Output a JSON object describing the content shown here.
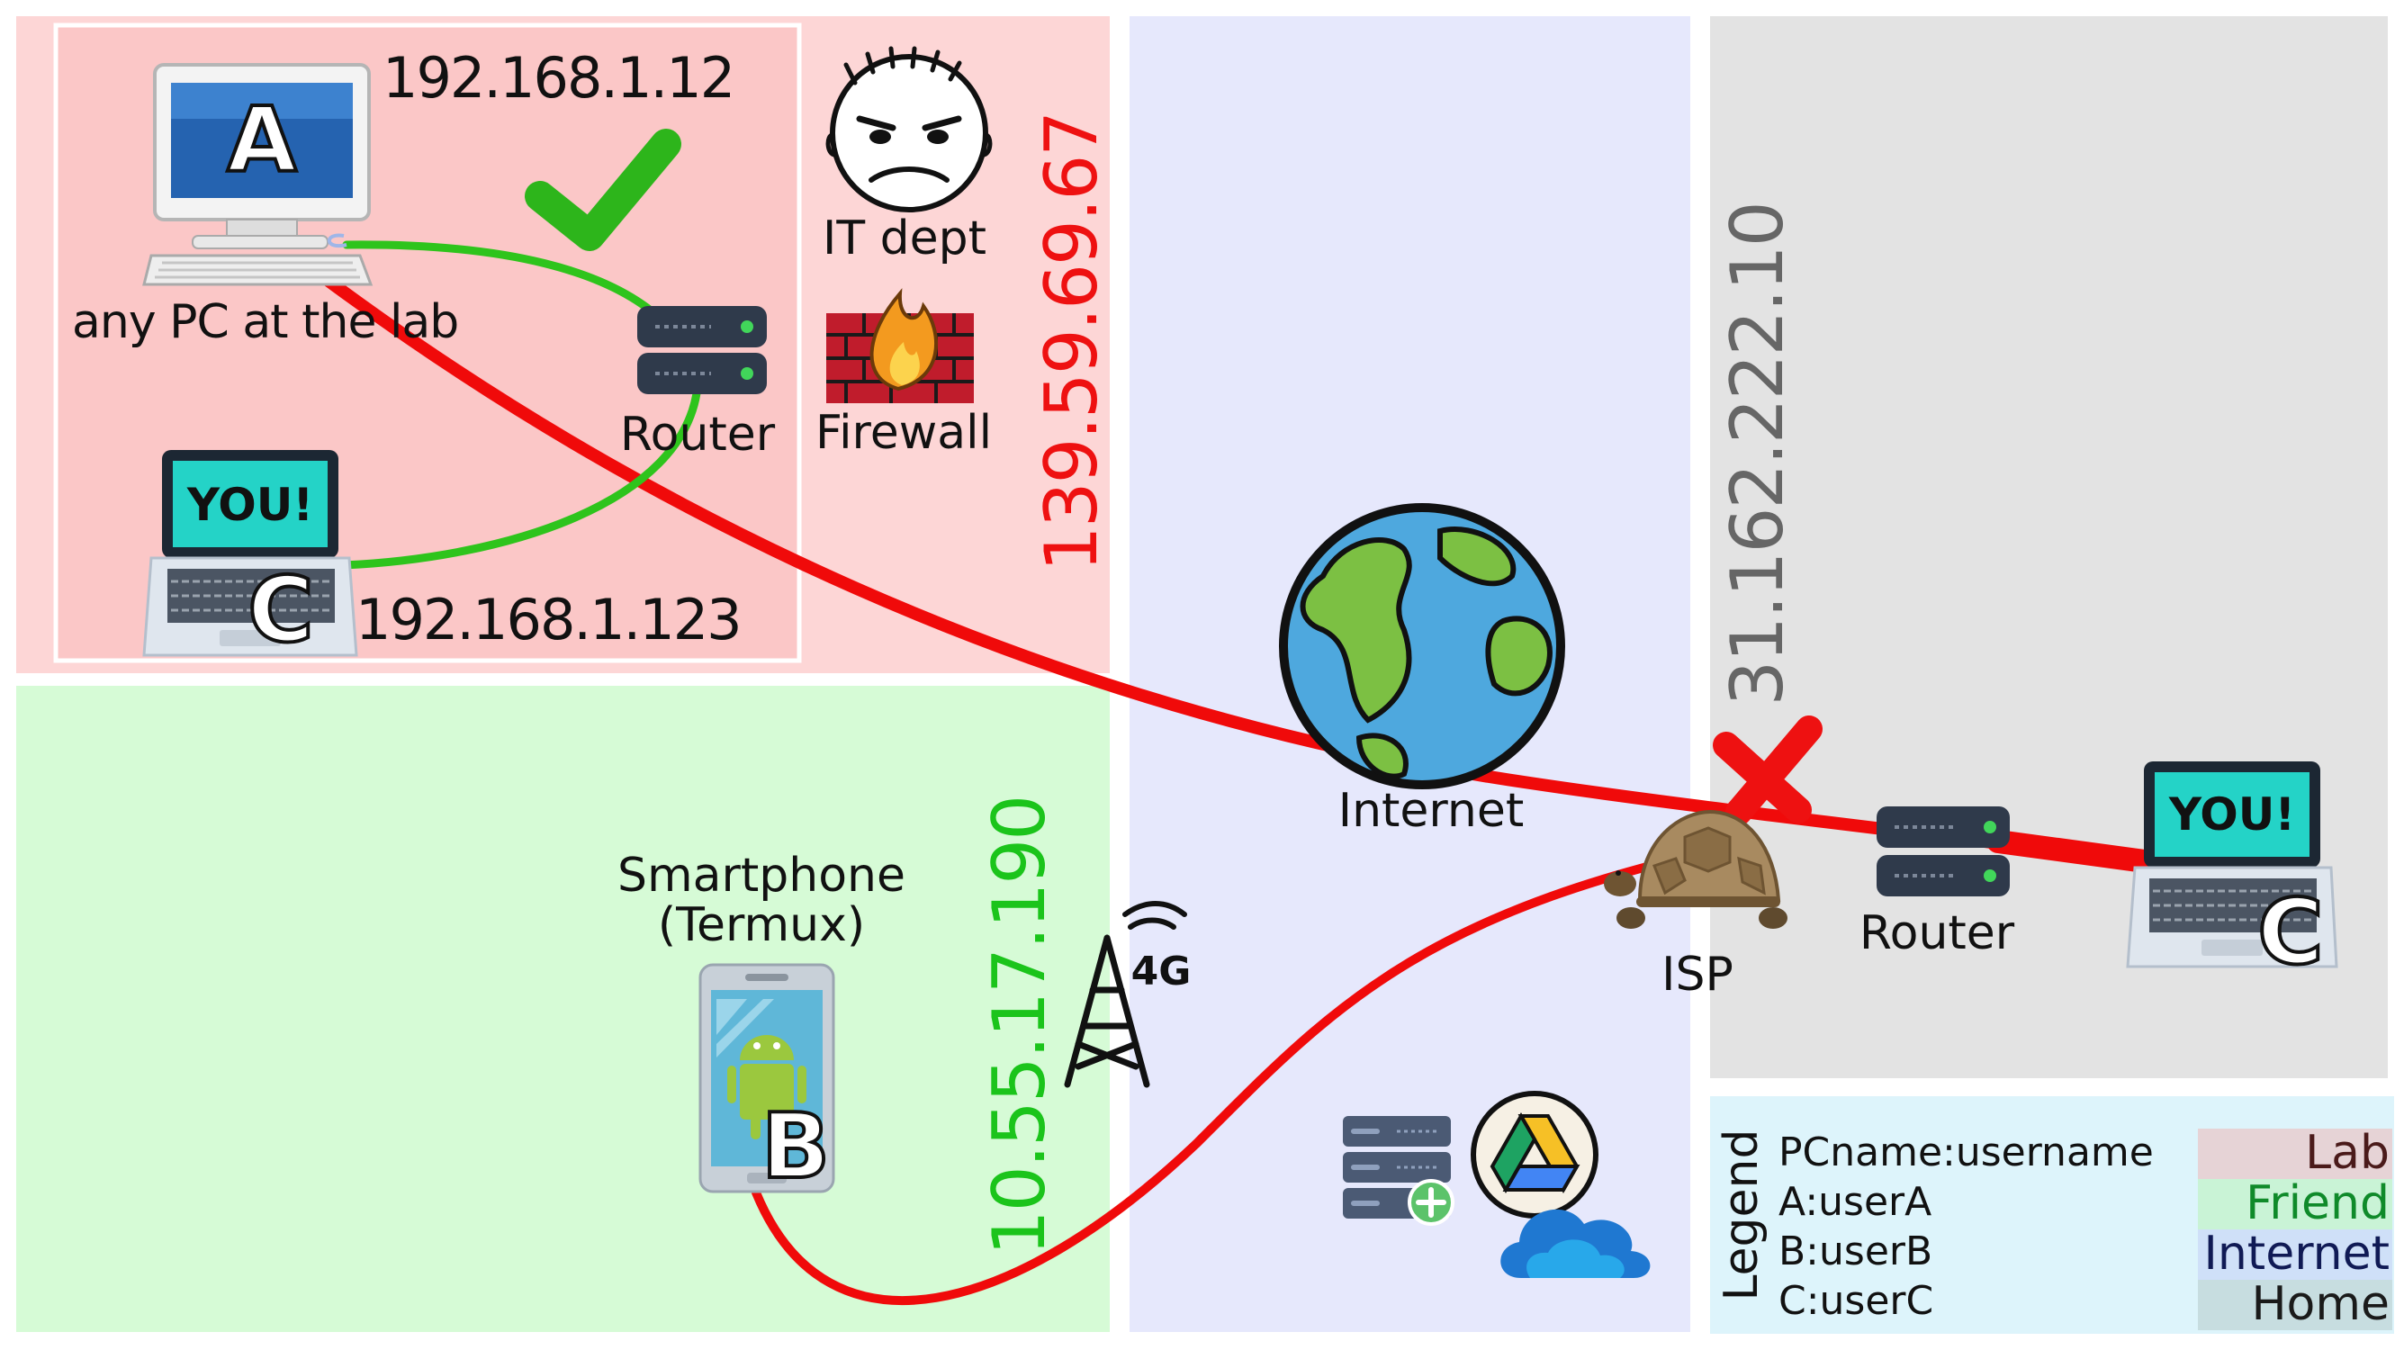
{
  "colors": {
    "lab": "#fdd6d6",
    "lab_inner": "#fbc7c7",
    "friend": "#d6fbd6",
    "internet": "#e6e8fc",
    "home": "#e3e3e3",
    "legend_bg": "#ddf4fb",
    "red_link": "#f00a0a",
    "green_link": "#2ec41c",
    "lab_ip": "#ee1111",
    "friend_ip": "#1bc41b",
    "home_ip": "#666666"
  },
  "lab": {
    "pc_a_letter": "A",
    "pc_a_ip": "192.168.1.12",
    "pc_a_caption": "any PC at the lab",
    "router_label": "Router",
    "laptop_c_letter": "C",
    "laptop_c_screen": "YOU!",
    "laptop_c_ip": "192.168.1.123",
    "it_label": "IT dept",
    "firewall_label": "Firewall",
    "public_ip": "139.59.69.67"
  },
  "friend": {
    "phone_caption_1": "Smartphone",
    "phone_caption_2": "(Termux)",
    "phone_letter": "B",
    "tower_label": "4G",
    "public_ip": "10.55.17.190"
  },
  "internet": {
    "label": "Internet"
  },
  "home": {
    "public_ip": "31.162.222.10",
    "isp_label": "ISP",
    "router_label": "Router",
    "laptop_c_letter": "C",
    "laptop_c_screen": "YOU!"
  },
  "legend": {
    "title": "Legend",
    "rows": [
      "PCname:username",
      "A:userA",
      "B:userB",
      "C:userC"
    ],
    "keys": [
      {
        "label": "Lab",
        "color": "#e6d3d6",
        "text": "#4a1a1a"
      },
      {
        "label": "Friend",
        "color": "#c9f3d6",
        "text": "#0f8a2a"
      },
      {
        "label": "Internet",
        "color": "#cfe0f8",
        "text": "#101a55"
      },
      {
        "label": "Home",
        "color": "#c7dde0",
        "text": "#1a1a1a"
      }
    ]
  }
}
